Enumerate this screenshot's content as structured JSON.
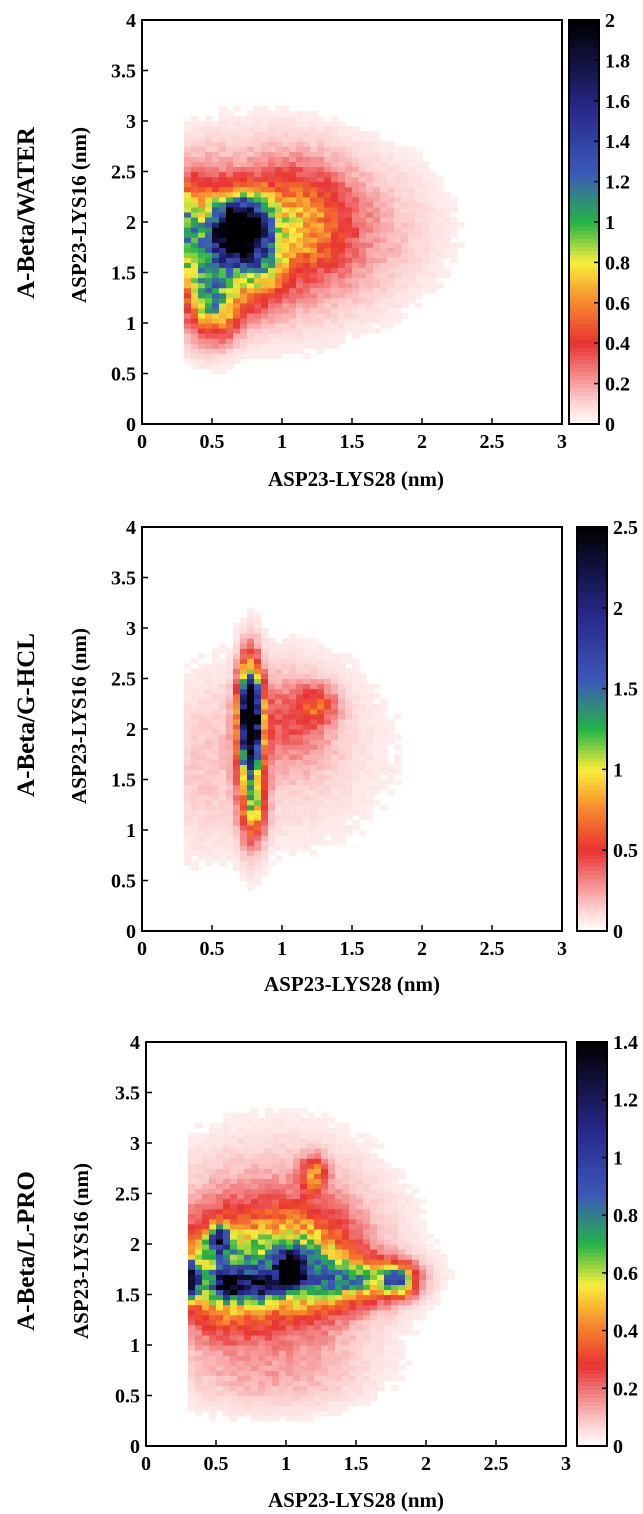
{
  "chart_data": [
    {
      "type": "heatmap",
      "row_label": "A-Beta/WATER",
      "xlabel": "ASP23-LYS28 (nm)",
      "ylabel": "ASP23-LYS16 (nm)",
      "xlim": [
        0,
        3
      ],
      "ylim": [
        0,
        4
      ],
      "x_ticks": [
        "0",
        "0.5",
        "1",
        "1.5",
        "2",
        "2.5",
        "3"
      ],
      "y_ticks": [
        "0",
        "0.5",
        "1",
        "1.5",
        "2",
        "2.5",
        "3",
        "3.5",
        "4"
      ],
      "colorbar": {
        "min": 0,
        "max": 2,
        "ticks": [
          "0",
          "0.2",
          "0.4",
          "0.6",
          "0.8",
          "1",
          "1.2",
          "1.4",
          "1.6",
          "1.8",
          "2"
        ]
      },
      "peaks": [
        {
          "x": 0.65,
          "y": 1.9,
          "value": 1.9,
          "sx": 0.09,
          "sy": 0.2
        },
        {
          "x": 0.78,
          "y": 1.95,
          "value": 1.2,
          "sx": 0.1,
          "sy": 0.22
        },
        {
          "x": 0.45,
          "y": 1.7,
          "value": 0.8,
          "sx": 0.12,
          "sy": 0.45
        },
        {
          "x": 0.32,
          "y": 1.95,
          "value": 0.6,
          "sx": 0.05,
          "sy": 0.3
        },
        {
          "x": 0.55,
          "y": 1.2,
          "value": 0.6,
          "sx": 0.12,
          "sy": 0.22
        },
        {
          "x": 0.85,
          "y": 1.55,
          "value": 0.55,
          "sx": 0.12,
          "sy": 0.25
        },
        {
          "x": 1.1,
          "y": 2.0,
          "value": 0.4,
          "sx": 0.25,
          "sy": 0.35
        },
        {
          "x": 0.9,
          "y": 1.9,
          "value": 0.3,
          "sx": 0.5,
          "sy": 0.6
        },
        {
          "x": 1.6,
          "y": 1.9,
          "value": 0.1,
          "sx": 0.45,
          "sy": 0.5
        }
      ]
    },
    {
      "type": "heatmap",
      "row_label": "A-Beta/G-HCL",
      "xlabel": "ASP23-LYS28 (nm)",
      "ylabel": "ASP23-LYS16 (nm)",
      "xlim": [
        0,
        3
      ],
      "ylim": [
        0,
        4
      ],
      "x_ticks": [
        "0",
        "0.5",
        "1",
        "1.5",
        "2",
        "2.5",
        "3"
      ],
      "y_ticks": [
        "0",
        "0.5",
        "1",
        "1.5",
        "2",
        "2.5",
        "3",
        "3.5",
        "4"
      ],
      "colorbar": {
        "min": 0,
        "max": 2.5,
        "ticks": [
          "0",
          "0.5",
          "1",
          "1.5",
          "2",
          "2.5"
        ]
      },
      "peaks": [
        {
          "x": 0.77,
          "y": 2.15,
          "value": 2.5,
          "sx": 0.05,
          "sy": 0.3
        },
        {
          "x": 0.78,
          "y": 1.8,
          "value": 1.0,
          "sx": 0.06,
          "sy": 0.5
        },
        {
          "x": 0.8,
          "y": 1.2,
          "value": 0.5,
          "sx": 0.06,
          "sy": 0.2
        },
        {
          "x": 1.25,
          "y": 2.25,
          "value": 0.4,
          "sx": 0.1,
          "sy": 0.12
        },
        {
          "x": 1.05,
          "y": 2.1,
          "value": 0.3,
          "sx": 0.2,
          "sy": 0.3
        },
        {
          "x": 1.0,
          "y": 1.8,
          "value": 0.15,
          "sx": 0.55,
          "sy": 0.7
        },
        {
          "x": 0.4,
          "y": 1.5,
          "value": 0.08,
          "sx": 0.2,
          "sy": 0.6
        }
      ]
    },
    {
      "type": "heatmap",
      "row_label": "A-Beta/L-PRO",
      "xlabel": "ASP23-LYS28 (nm)",
      "ylabel": "ASP23-LYS16 (nm)",
      "xlim": [
        0,
        3
      ],
      "ylim": [
        0,
        4
      ],
      "x_ticks": [
        "0",
        "0.5",
        "1",
        "1.5",
        "2",
        "2.5",
        "3"
      ],
      "y_ticks": [
        "0",
        "0.5",
        "1",
        "1.5",
        "2",
        "2.5",
        "3",
        "3.5",
        "4"
      ],
      "colorbar": {
        "min": 0,
        "max": 1.4,
        "ticks": [
          "0",
          "0.2",
          "0.4",
          "0.6",
          "0.8",
          "1",
          "1.2",
          "1.4"
        ]
      },
      "peaks": [
        {
          "x": 0.32,
          "y": 1.65,
          "value": 1.0,
          "sx": 0.04,
          "sy": 0.12
        },
        {
          "x": 0.52,
          "y": 2.05,
          "value": 0.9,
          "sx": 0.05,
          "sy": 0.08
        },
        {
          "x": 0.58,
          "y": 1.6,
          "value": 0.9,
          "sx": 0.06,
          "sy": 0.08
        },
        {
          "x": 1.03,
          "y": 1.75,
          "value": 1.0,
          "sx": 0.07,
          "sy": 0.12
        },
        {
          "x": 0.8,
          "y": 1.6,
          "value": 0.6,
          "sx": 0.1,
          "sy": 0.1
        },
        {
          "x": 0.55,
          "y": 1.7,
          "value": 0.55,
          "sx": 0.22,
          "sy": 0.35
        },
        {
          "x": 1.1,
          "y": 1.8,
          "value": 0.5,
          "sx": 0.25,
          "sy": 0.35
        },
        {
          "x": 1.5,
          "y": 1.65,
          "value": 0.5,
          "sx": 0.25,
          "sy": 0.15
        },
        {
          "x": 1.8,
          "y": 1.65,
          "value": 0.65,
          "sx": 0.08,
          "sy": 0.1
        },
        {
          "x": 1.2,
          "y": 2.7,
          "value": 0.35,
          "sx": 0.06,
          "sy": 0.12
        },
        {
          "x": 0.9,
          "y": 1.9,
          "value": 0.22,
          "sx": 0.55,
          "sy": 0.7
        },
        {
          "x": 0.9,
          "y": 0.7,
          "value": 0.08,
          "sx": 0.5,
          "sy": 0.25
        }
      ]
    }
  ]
}
